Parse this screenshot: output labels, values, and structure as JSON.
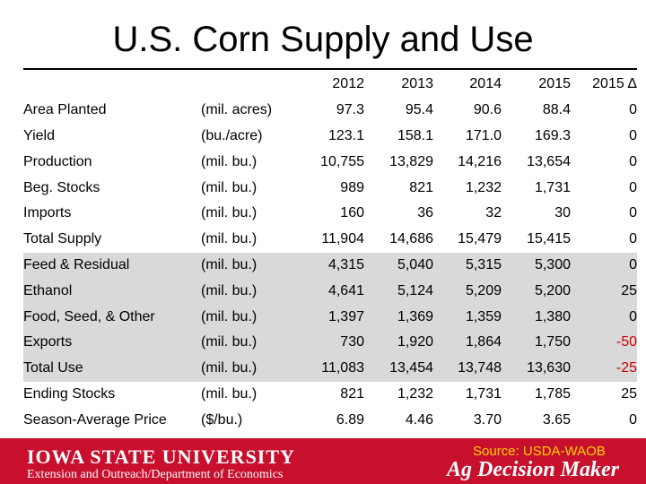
{
  "title": "U.S. Corn Supply and Use",
  "table": {
    "columns": [
      "2012",
      "2013",
      "2014",
      "2015",
      "2015 Δ"
    ],
    "rows": [
      {
        "label": "Area Planted",
        "unit": "(mil. acres)",
        "values": [
          "97.3",
          "95.4",
          "90.6",
          "88.4",
          "0"
        ],
        "shaded": false
      },
      {
        "label": "Yield",
        "unit": "(bu./acre)",
        "values": [
          "123.1",
          "158.1",
          "171.0",
          "169.3",
          "0"
        ],
        "shaded": false
      },
      {
        "label": "Production",
        "unit": "(mil. bu.)",
        "values": [
          "10,755",
          "13,829",
          "14,216",
          "13,654",
          "0"
        ],
        "shaded": false
      },
      {
        "label": "Beg. Stocks",
        "unit": "(mil. bu.)",
        "values": [
          "989",
          "821",
          "1,232",
          "1,731",
          "0"
        ],
        "shaded": false
      },
      {
        "label": "Imports",
        "unit": "(mil. bu.)",
        "values": [
          "160",
          "36",
          "32",
          "30",
          "0"
        ],
        "shaded": false
      },
      {
        "label": "Total Supply",
        "unit": "(mil. bu.)",
        "values": [
          "11,904",
          "14,686",
          "15,479",
          "15,415",
          "0"
        ],
        "shaded": false
      },
      {
        "label": "Feed & Residual",
        "unit": "(mil. bu.)",
        "values": [
          "4,315",
          "5,040",
          "5,315",
          "5,300",
          "0"
        ],
        "shaded": true
      },
      {
        "label": "Ethanol",
        "unit": "(mil. bu.)",
        "values": [
          "4,641",
          "5,124",
          "5,209",
          "5,200",
          "25"
        ],
        "shaded": true
      },
      {
        "label": "Food, Seed, & Other",
        "unit": "(mil. bu.)",
        "values": [
          "1,397",
          "1,369",
          "1,359",
          "1,380",
          "0"
        ],
        "shaded": true
      },
      {
        "label": "Exports",
        "unit": "(mil. bu.)",
        "values": [
          "730",
          "1,920",
          "1,864",
          "1,750",
          "-50"
        ],
        "shaded": true
      },
      {
        "label": "Total Use",
        "unit": "(mil. bu.)",
        "values": [
          "11,083",
          "13,454",
          "13,748",
          "13,630",
          "-25"
        ],
        "shaded": true
      },
      {
        "label": "Ending Stocks",
        "unit": "(mil. bu.)",
        "values": [
          "821",
          "1,232",
          "1,731",
          "1,785",
          "25"
        ],
        "shaded": false
      },
      {
        "label": "Season-Average Price",
        "unit": "($/bu.)",
        "values": [
          "6.89",
          "4.46",
          "3.70",
          "3.65",
          "0"
        ],
        "shaded": false
      }
    ]
  },
  "footer": {
    "logo_text": "IOWA STATE UNIVERSITY",
    "department": "Extension and Outreach/Department of Economics",
    "source": "Source: USDA-WAOB",
    "brand": "Ag Decision Maker"
  },
  "colors": {
    "footer_bg": "#c8102e",
    "row_shade": "#d9d9d9",
    "negative": "#cc0000",
    "source_text": "#ffd200"
  }
}
